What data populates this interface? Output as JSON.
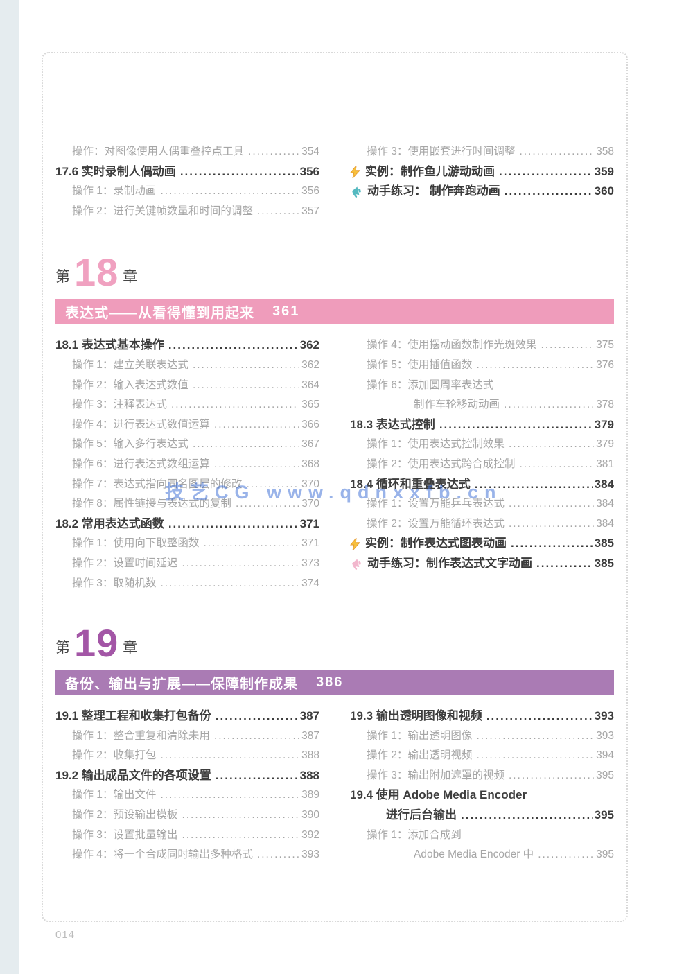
{
  "page": {
    "folio": "014",
    "watermark": "技艺CG www.qdnxxfb.cn"
  },
  "colors": {
    "accent_pink": "#ef9cbb",
    "accent_purple": "#aa7bb4",
    "chapter_number_pink": "#f0a1c0",
    "chapter_number_purple": "#a356a6",
    "watermark_blue": "#3b6ed4",
    "lightning_yellow": "#f7c03c",
    "megaphone_teal": "#54b9c0",
    "megaphone_pink": "#f2b7cd",
    "edge_strip": "#e5ecef"
  },
  "sections": [
    {
      "id": "ch17-tail",
      "kind": "columns",
      "columns": [
        [
          {
            "t": "sub",
            "label": "操作：对图像使用人偶重叠控点工具",
            "page": "354"
          },
          {
            "t": "main",
            "label": "17.6 实时录制人偶动画",
            "page": "356"
          },
          {
            "t": "sub",
            "label": "操作 1：录制动画",
            "page": "356"
          },
          {
            "t": "sub",
            "label": "操作 2：进行关键帧数量和时间的调整",
            "page": "357"
          }
        ],
        [
          {
            "t": "sub",
            "label": "操作 3：使用嵌套进行时间调整",
            "page": "358"
          },
          {
            "t": "example",
            "icon": "lightning",
            "label": "实例：制作鱼儿游动动画",
            "page": "359"
          },
          {
            "t": "practice",
            "icon": "megaphone-teal",
            "label": "动手练习： 制作奔跑动画",
            "page": "360"
          }
        ]
      ]
    },
    {
      "id": "ch18",
      "kind": "chapter",
      "prefix": "第",
      "number": "18",
      "suffix": "章",
      "banner_title": "表达式——从看得懂到用起来",
      "banner_page": "361",
      "columns": [
        [
          {
            "t": "main",
            "label": "18.1 表达式基本操作",
            "page": "362"
          },
          {
            "t": "sub",
            "label": "操作 1：建立关联表达式",
            "page": "362"
          },
          {
            "t": "sub",
            "label": "操作 2：输入表达式数值",
            "page": "364"
          },
          {
            "t": "sub",
            "label": "操作 3：注释表达式",
            "page": "365"
          },
          {
            "t": "sub",
            "label": "操作 4：进行表达式数值运算",
            "page": "366"
          },
          {
            "t": "sub",
            "label": "操作 5：输入多行表达式",
            "page": "367"
          },
          {
            "t": "sub",
            "label": "操作 6：进行表达式数组运算",
            "page": "368"
          },
          {
            "t": "sub",
            "label": "操作 7：表达式指向同名图层的修改",
            "page": "370"
          },
          {
            "t": "sub",
            "label": "操作 8：属性链接与表达式的复制",
            "page": "370"
          },
          {
            "t": "main",
            "label": "18.2 常用表达式函数",
            "page": "371"
          },
          {
            "t": "sub",
            "label": "操作 1：使用向下取整函数",
            "page": "371"
          },
          {
            "t": "sub",
            "label": "操作 2：设置时间延迟",
            "page": "373"
          },
          {
            "t": "sub",
            "label": "操作 3：取随机数",
            "page": "374"
          }
        ],
        [
          {
            "t": "sub",
            "label": "操作 4：使用摆动函数制作光斑效果",
            "page": "375"
          },
          {
            "t": "sub",
            "label": "操作 5：使用插值函数",
            "page": "376"
          },
          {
            "t": "sub",
            "label": "操作 6：添加圆周率表达式",
            "page": null
          },
          {
            "t": "sub-cont",
            "label": "制作车轮移动动画",
            "page": "378"
          },
          {
            "t": "main",
            "label": "18.3 表达式控制",
            "page": "379"
          },
          {
            "t": "sub",
            "label": "操作 1：使用表达式控制效果",
            "page": "379"
          },
          {
            "t": "sub",
            "label": "操作 2：使用表达式跨合成控制",
            "page": "381"
          },
          {
            "t": "main",
            "label": "18.4 循环和重叠表达式",
            "page": "384"
          },
          {
            "t": "sub",
            "label": "操作 1：设置万能乒乓表达式",
            "page": "384"
          },
          {
            "t": "sub",
            "label": "操作 2：设置万能循环表达式",
            "page": "384"
          },
          {
            "t": "example",
            "icon": "lightning",
            "label": "实例：制作表达式图表动画",
            "page": "385"
          },
          {
            "t": "practice",
            "icon": "megaphone-pink",
            "label": "动手练习：制作表达式文字动画",
            "page": "385"
          }
        ]
      ]
    },
    {
      "id": "ch19",
      "kind": "chapter",
      "prefix": "第",
      "number": "19",
      "suffix": "章",
      "banner_title": "备份、输出与扩展——保障制作成果",
      "banner_page": "386",
      "columns": [
        [
          {
            "t": "main",
            "label": "19.1 整理工程和收集打包备份",
            "page": "387"
          },
          {
            "t": "sub",
            "label": "操作 1：整合重复和清除未用",
            "page": "387"
          },
          {
            "t": "sub",
            "label": "操作 2：收集打包",
            "page": "388"
          },
          {
            "t": "main",
            "label": "19.2 输出成品文件的各项设置",
            "page": "388"
          },
          {
            "t": "sub",
            "label": "操作 1：输出文件",
            "page": "389"
          },
          {
            "t": "sub",
            "label": "操作 2：预设输出模板",
            "page": "390"
          },
          {
            "t": "sub",
            "label": "操作 3：设置批量输出",
            "page": "392"
          },
          {
            "t": "sub",
            "label": "操作 4：将一个合成同时输出多种格式",
            "page": "393"
          }
        ],
        [
          {
            "t": "main",
            "label": "19.3 输出透明图像和视频",
            "page": "393"
          },
          {
            "t": "sub",
            "label": "操作 1：输出透明图像",
            "page": "393"
          },
          {
            "t": "sub",
            "label": "操作 2：输出透明视频",
            "page": "394"
          },
          {
            "t": "sub",
            "label": "操作 3：输出附加遮罩的视频",
            "page": "395"
          },
          {
            "t": "main",
            "label": "19.4 使用 Adobe Media Encoder",
            "page": null
          },
          {
            "t": "main-cont",
            "label": "进行后台输出",
            "page": "395"
          },
          {
            "t": "sub",
            "label": "操作 1：添加合成到",
            "page": null
          },
          {
            "t": "sub-cont",
            "label": "Adobe Media Encoder 中",
            "page": "395"
          }
        ]
      ]
    }
  ]
}
